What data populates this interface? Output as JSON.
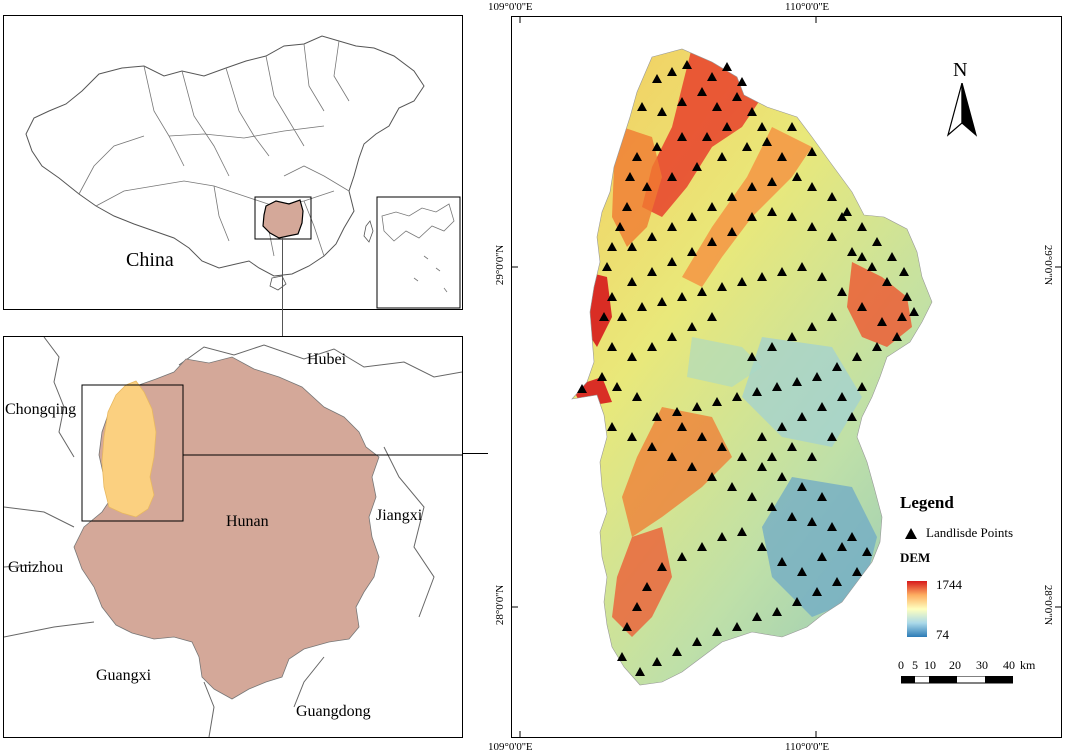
{
  "china_panel": {
    "label": "China"
  },
  "hunan_panel": {
    "provinces": {
      "hubei": "Hubei",
      "chongqing": "Chongqing",
      "hunan": "Hunan",
      "jiangxi": "Jiangxi",
      "guizhou": "Guizhou",
      "guangxi": "Guangxi",
      "guangdong": "Guangdong"
    }
  },
  "map_frame": {
    "coords": {
      "lon1_top": "109°0'0''E",
      "lon2_top": "110°0'0''E",
      "lon1_bottom": "109°0'0''E",
      "lon2_bottom": "110°0'0''E",
      "lat1_left": "29°0'0''N",
      "lat2_left": "28°0'0''N",
      "lat1_right": "29°0'0''N",
      "lat2_right": "28°0'0''N"
    }
  },
  "north_arrow": {
    "label": "N"
  },
  "legend": {
    "title": "Legend",
    "points_label": "Landlisde Points",
    "dem_title": "DEM",
    "dem_max": "1744",
    "dem_min": "74",
    "colors": [
      "#d7191c",
      "#fdae61",
      "#ffffbf",
      "#abd9e9",
      "#2c7bb6"
    ]
  },
  "scale_bar": {
    "ticks": [
      "0",
      "5",
      "10",
      "20",
      "30",
      "40"
    ],
    "unit": "km"
  }
}
